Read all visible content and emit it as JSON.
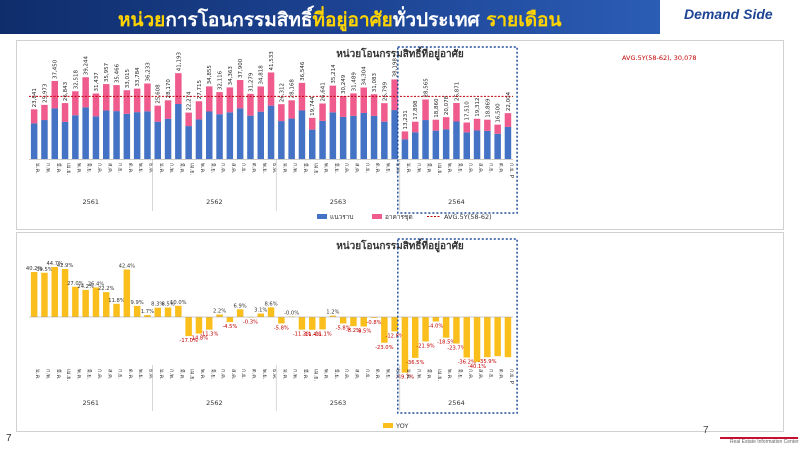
{
  "header": {
    "title_part1": "หน่วย",
    "title_part2": "การโอนกรรมสิทธิ์",
    "title_part3": "ที่อยู่อาศัย",
    "title_part4": "ทั่วประเทศ",
    "title_part5": "รายเดือน",
    "demand_side": "Demand Side"
  },
  "page_number": "7",
  "page_number_inner": "7",
  "footer_logo_text": "Real Estate Information Center",
  "colors": {
    "series_low_rise": "#4472c4",
    "series_condo": "#ef5b8c",
    "avg_line": "#c00000",
    "yoy_bar": "#fbbf1d",
    "yoy_positive_label": "#333333",
    "yoy_negative_label": "#c00000",
    "highlight_box": "#1f4e9e"
  },
  "chart_data": [
    {
      "type": "bar",
      "stacked": true,
      "title": "หน่วยโอนกรรมสิทธิ์ที่อยู่อาศัย",
      "categories": [
        "ม.ค.",
        "ก.พ.",
        "มี.ค.",
        "เม.ย.",
        "พ.ค.",
        "มิ.ย.",
        "ก.ค.",
        "ส.ค.",
        "ก.ย.",
        "ต.ค.",
        "พ.ย.",
        "ธ.ค.",
        "ม.ค.",
        "ก.พ.",
        "มี.ค.",
        "เม.ย.",
        "พ.ค.",
        "มิ.ย.",
        "ก.ค.",
        "ส.ค.",
        "ก.ย.",
        "ต.ค.",
        "พ.ย.",
        "ธ.ค.",
        "ม.ค.",
        "ก.พ.",
        "มี.ค.",
        "เม.ย.",
        "พ.ค.",
        "มิ.ย.",
        "ก.ค.",
        "ส.ค.",
        "ก.ย.",
        "ต.ค.",
        "พ.ย.",
        "ธ.ค.",
        "ม.ค.",
        "ก.พ.",
        "มี.ค.",
        "เม.ย.",
        "พ.ค.",
        "มิ.ย.",
        "ก.ค.",
        "ส.ค.",
        "ก.ย.",
        "ต.ค.",
        "ก.ย. P"
      ],
      "year_groups": [
        {
          "label": "2561",
          "start": 0,
          "end": 11
        },
        {
          "label": "2562",
          "start": 12,
          "end": 23
        },
        {
          "label": "2563",
          "start": 24,
          "end": 35
        },
        {
          "label": "2564",
          "start": 36,
          "end": 46
        }
      ],
      "totals": [
        23841,
        25973,
        37450,
        26843,
        32518,
        39244,
        31437,
        35957,
        35466,
        33015,
        33784,
        36233,
        25608,
        28170,
        41193,
        22274,
        27715,
        34855,
        32116,
        34363,
        37900,
        31279,
        34818,
        41533,
        26312,
        28168,
        36546,
        19744,
        26641,
        35214,
        30249,
        31489,
        34304,
        31083,
        26799,
        38198,
        13231,
        17898,
        28565,
        18860,
        20078,
        26871,
        17510,
        19312,
        18869,
        16500,
        22004
      ],
      "series": [
        {
          "name": "แนวราบ",
          "values": [
            17100,
            18700,
            24300,
            17800,
            21000,
            24800,
            20500,
            23300,
            23000,
            21700,
            22500,
            22900,
            17900,
            19300,
            26400,
            15800,
            19000,
            22800,
            21500,
            22400,
            24300,
            20800,
            22700,
            25600,
            18200,
            19400,
            23300,
            14100,
            18300,
            22400,
            20200,
            20700,
            22100,
            20700,
            17900,
            23500,
            9400,
            12800,
            18700,
            13600,
            14200,
            18000,
            12800,
            13700,
            13500,
            12100,
            15400
          ]
        },
        {
          "name": "อาคารชุด",
          "values": [
            6741,
            7273,
            13150,
            9043,
            11518,
            14444,
            10937,
            12657,
            12466,
            11315,
            11284,
            13333,
            7708,
            8870,
            14793,
            6474,
            8715,
            12055,
            10616,
            11963,
            13600,
            10479,
            12118,
            15933,
            8112,
            8768,
            13246,
            5644,
            8341,
            12814,
            10049,
            10789,
            12204,
            10383,
            8899,
            14698,
            3831,
            5098,
            9865,
            5260,
            5878,
            8871,
            4710,
            5612,
            5369,
            4400,
            6604
          ]
        }
      ],
      "average": {
        "name": "AVG.5Y(58-62)",
        "label": "AVG.5Y(58-62),  30,078",
        "value": 30078
      },
      "ylim": [
        0,
        48000
      ],
      "legend": [
        "แนวราบ",
        "อาคารชุด",
        "AVG.5Y(58-62)"
      ],
      "legend_position": "bottom"
    },
    {
      "type": "bar",
      "title": "หน่วยโอนกรรมสิทธิ์ที่อยู่อาศัย",
      "series": [
        {
          "name": "YOY",
          "values": [
            40.2,
            39.5,
            44.7,
            42.9,
            27.0,
            24.2,
            26.4,
            22.2,
            11.8,
            42.4,
            9.9,
            1.7,
            8.3,
            8.5,
            10.0,
            -17.0,
            -14.8,
            -11.3,
            2.2,
            -4.5,
            6.9,
            -0.3,
            3.1,
            8.6,
            -5.8,
            -0.0,
            -11.3,
            -11.4,
            -11.1,
            1.2,
            -5.8,
            -8.2,
            -8.5,
            -0.8,
            -23.0,
            -12.8,
            -49.7,
            -36.5,
            -21.9,
            -4.0,
            -18.5,
            -23.7,
            -36.2,
            -40.1,
            -35.9,
            -35.0,
            -35.9
          ]
        }
      ],
      "labels": [
        "40.2%",
        "39.5%",
        "44.7%",
        "42.9%",
        "27.0%",
        "24.2%",
        "26.4%",
        "22.2%",
        "11.8%",
        "42.4%",
        "9.9%",
        "1.7%",
        "8.3%",
        "8.5%",
        "10.0%",
        "-17.0%",
        "-14.8%",
        "-11.3%",
        "2.2%",
        "-4.5%",
        "6.9%",
        "-0.3%",
        "3.1%",
        "8.6%",
        "-5.8%",
        "-0.0%",
        "-11.3%",
        "-11.4%",
        "-11.1%",
        "1.2%",
        "-5.8%",
        "-8.2%",
        "-8.5%",
        "-0.8%",
        "-23.0%",
        "-12.8%",
        "-49.7%",
        "-36.5%",
        "-21.9%",
        "-4.0%",
        "-18.5%",
        "-23.7%",
        "-36.2%",
        "-40.1%",
        "-35.9%",
        "",
        ""
      ],
      "ylim": [
        -55,
        55
      ],
      "legend": [
        "YOY"
      ],
      "legend_position": "bottom"
    }
  ]
}
